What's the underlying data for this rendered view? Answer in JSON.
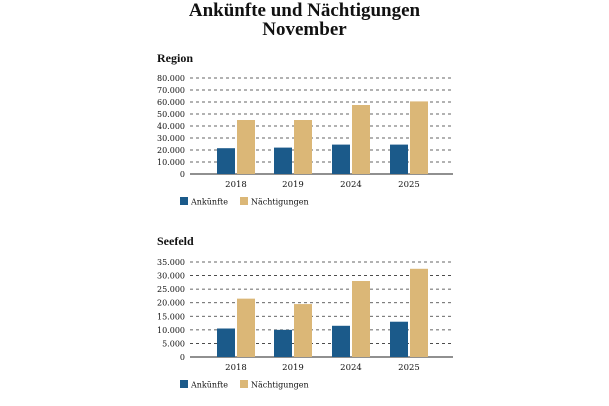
{
  "header": {
    "title_line1": "Ankünfte und Nächtigungen",
    "title_line2": "November"
  },
  "colors": {
    "ankuenfte": "#1b5a8a",
    "naechtigungen": "#dbb777",
    "grid": "#333333"
  },
  "chart_data": [
    {
      "type": "bar",
      "title": "Region",
      "categories": [
        "2018",
        "2019",
        "2024",
        "2025"
      ],
      "series": [
        {
          "name": "Ankünfte",
          "values": [
            21500,
            22000,
            24500,
            24500
          ]
        },
        {
          "name": "Nächtigungen",
          "values": [
            45000,
            45000,
            57500,
            60500
          ]
        }
      ],
      "ylim": [
        0,
        80000
      ],
      "yticks": [
        0,
        10000,
        20000,
        30000,
        40000,
        50000,
        60000,
        70000,
        80000
      ],
      "ytick_labels": [
        "0",
        "10.000",
        "20.000",
        "30.000",
        "40.000",
        "50.000",
        "60.000",
        "70.000",
        "80.000"
      ],
      "grid": true,
      "legend": "bottom-left"
    },
    {
      "type": "bar",
      "title": "Seefeld",
      "categories": [
        "2018",
        "2019",
        "2024",
        "2025"
      ],
      "series": [
        {
          "name": "Ankünfte",
          "values": [
            10500,
            10000,
            11500,
            13000
          ]
        },
        {
          "name": "Nächtigungen",
          "values": [
            21500,
            19500,
            28000,
            32500
          ]
        }
      ],
      "ylim": [
        0,
        35000
      ],
      "yticks": [
        0,
        5000,
        10000,
        15000,
        20000,
        25000,
        30000,
        35000
      ],
      "ytick_labels": [
        "0",
        "5.000",
        "10.000",
        "15.000",
        "20.000",
        "25.000",
        "30.000",
        "35.000"
      ],
      "grid": true,
      "legend": "bottom-left"
    }
  ]
}
